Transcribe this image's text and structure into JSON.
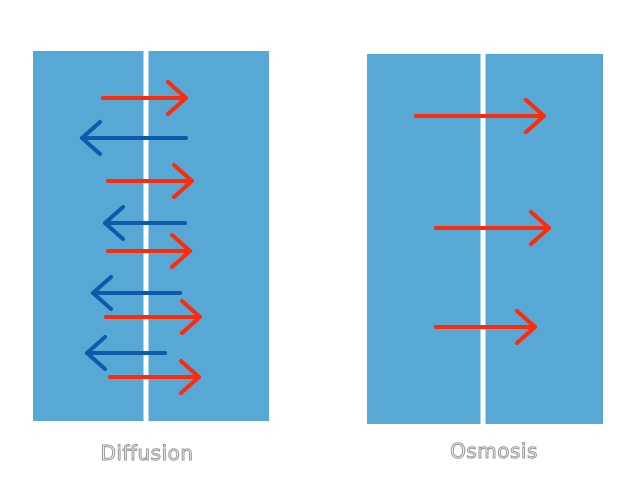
{
  "colors": {
    "background": "#ffffff",
    "water": "#57a8d5",
    "membrane": "#ffffff",
    "arrow_right": "#ff2a0a",
    "arrow_left": "#0f5aa8"
  },
  "panels": [
    {
      "label": "Diffusion",
      "arrows": [
        {
          "direction": "right",
          "color": "red"
        },
        {
          "direction": "left",
          "color": "blue"
        },
        {
          "direction": "right",
          "color": "red"
        },
        {
          "direction": "left",
          "color": "blue"
        },
        {
          "direction": "right",
          "color": "red"
        },
        {
          "direction": "left",
          "color": "blue"
        },
        {
          "direction": "right",
          "color": "red"
        },
        {
          "direction": "left",
          "color": "blue"
        },
        {
          "direction": "right",
          "color": "red"
        }
      ]
    },
    {
      "label": "Osmosis",
      "arrows": [
        {
          "direction": "right",
          "color": "red"
        },
        {
          "direction": "right",
          "color": "red"
        },
        {
          "direction": "right",
          "color": "red"
        }
      ]
    }
  ]
}
